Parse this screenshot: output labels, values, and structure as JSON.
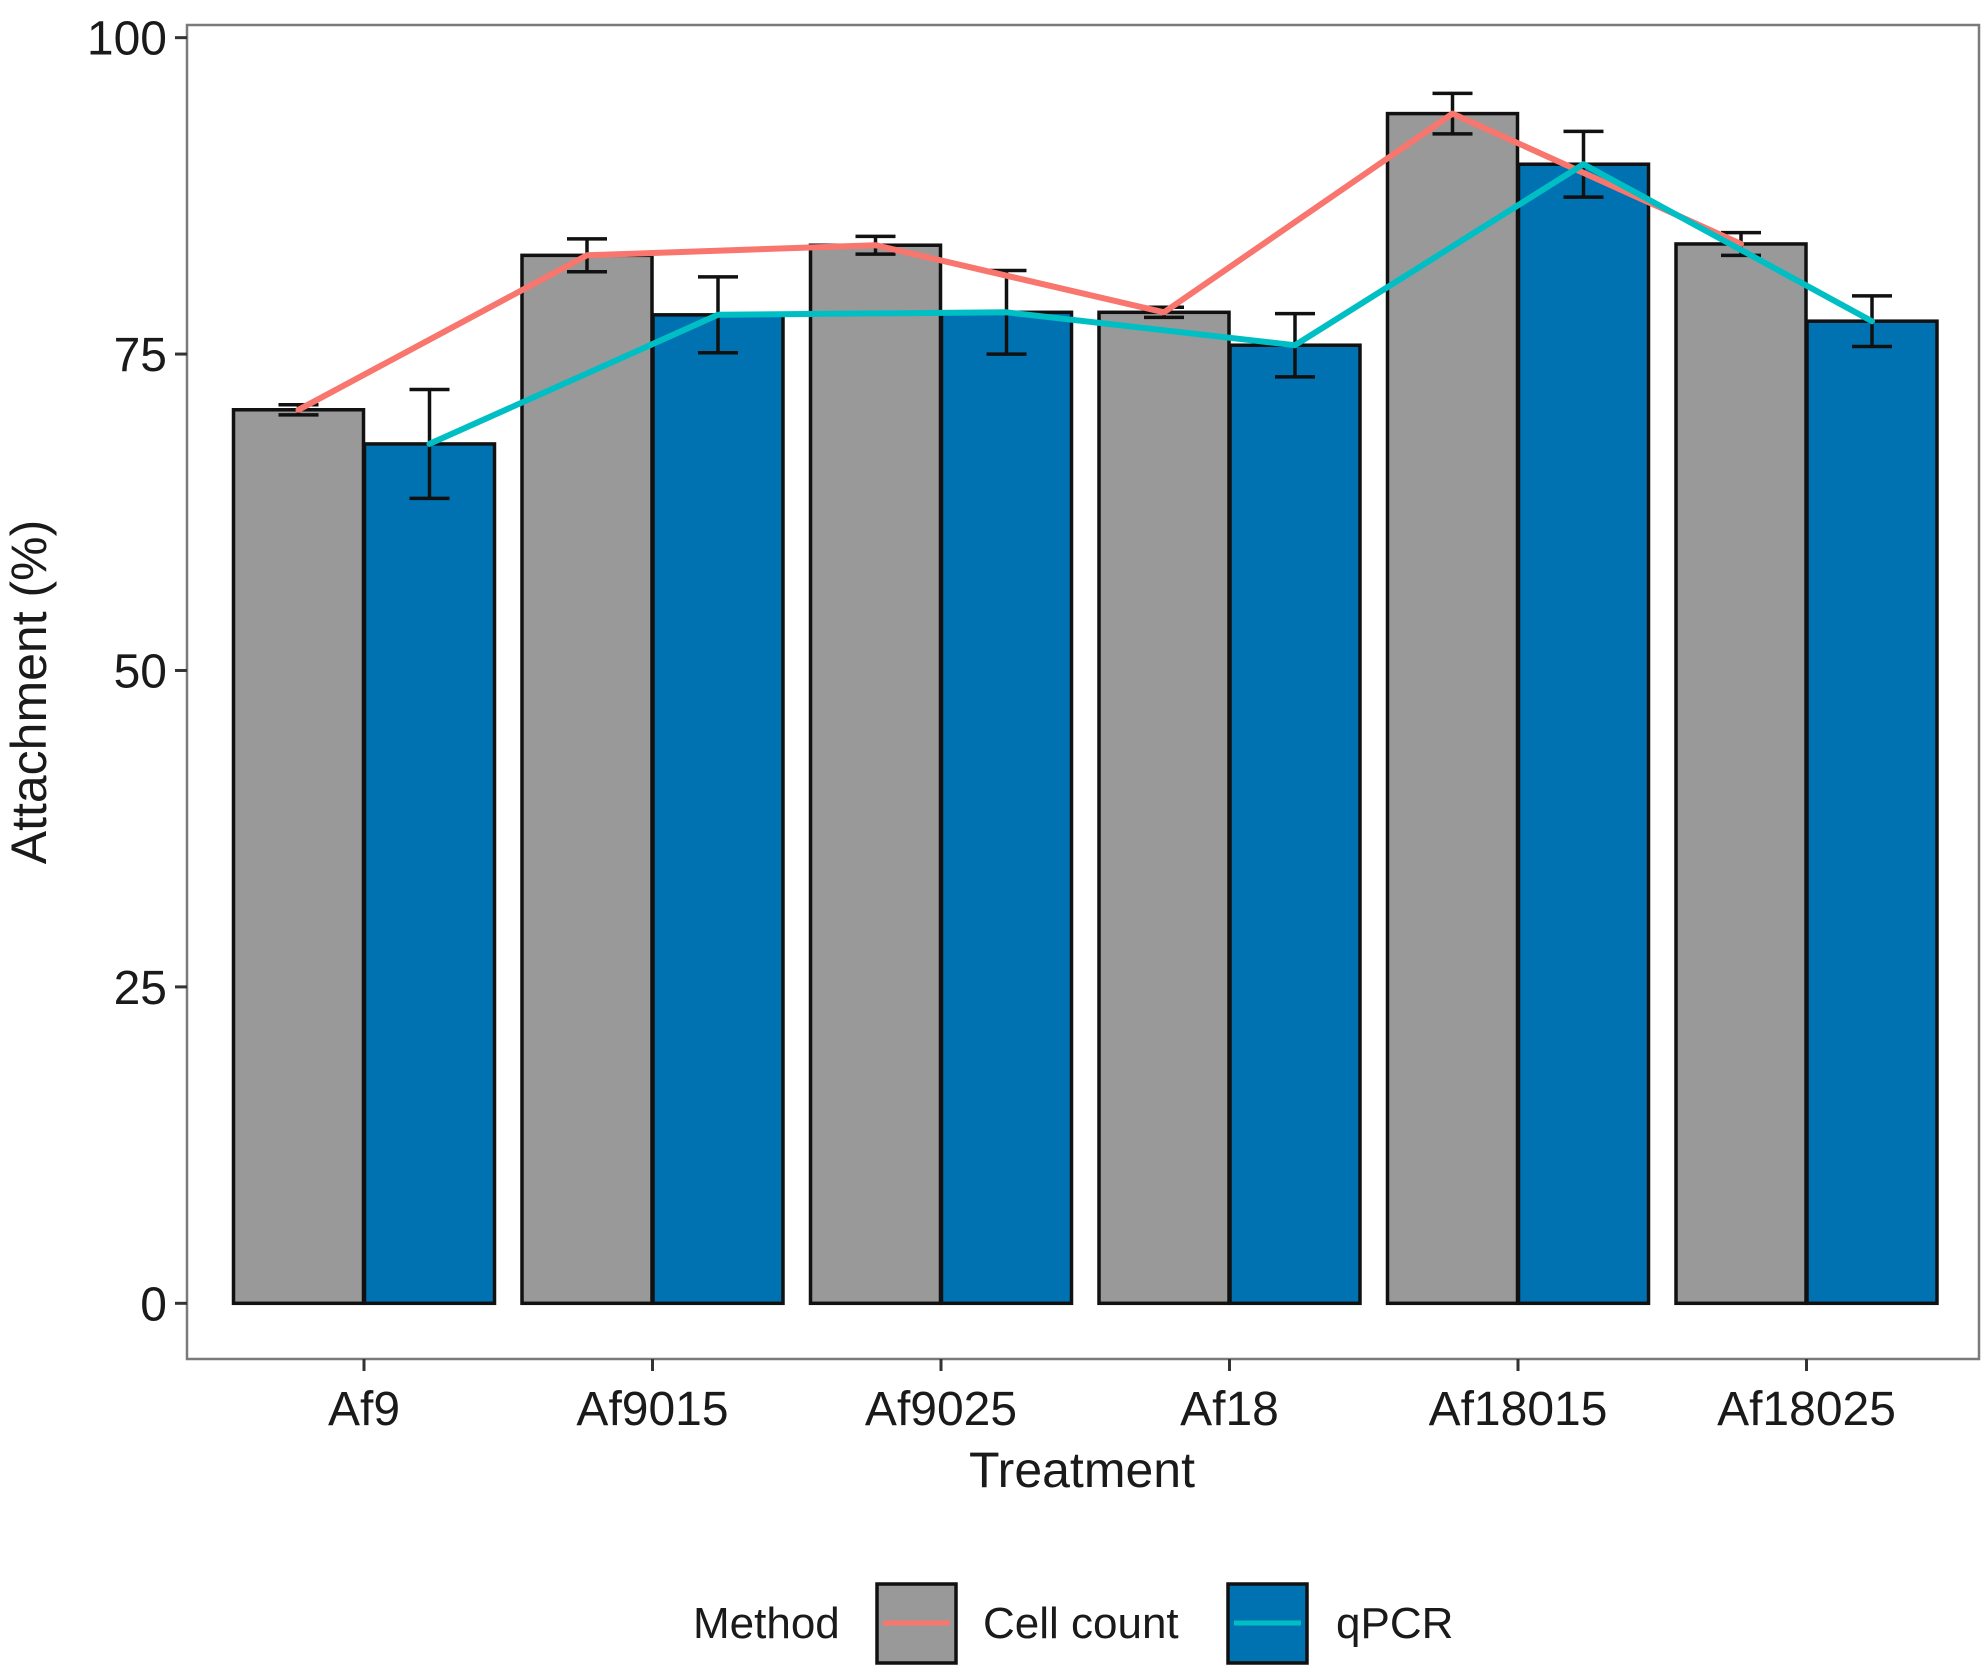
{
  "chart_data": {
    "type": "bar",
    "title": "",
    "xlabel": "Treatment",
    "ylabel": "Attachment (%)",
    "ylim": [
      -4.4,
      101
    ],
    "yticks": [
      0,
      25,
      50,
      75,
      100
    ],
    "categories": [
      "Af9",
      "Af9015",
      "Af9025",
      "Af18",
      "Af18015",
      "Af18025"
    ],
    "series": [
      {
        "name": "Cell count",
        "values": [
          70.6,
          82.8,
          83.6,
          78.3,
          94.0,
          83.7
        ],
        "error": [
          0.4,
          1.3,
          0.7,
          0.4,
          1.6,
          0.9
        ],
        "bar_color": "#999999",
        "line_color": "#F8766D"
      },
      {
        "name": "qPCR",
        "values": [
          67.9,
          78.1,
          78.3,
          75.7,
          90.0,
          77.6
        ],
        "error": [
          4.3,
          3.0,
          3.3,
          2.5,
          2.6,
          2.0
        ],
        "bar_color": "#0072B2",
        "line_color": "#00BFC4"
      }
    ],
    "legend": {
      "title": "Method",
      "position": "bottom",
      "entries": [
        "Cell count",
        "qPCR"
      ]
    },
    "grid": false
  }
}
